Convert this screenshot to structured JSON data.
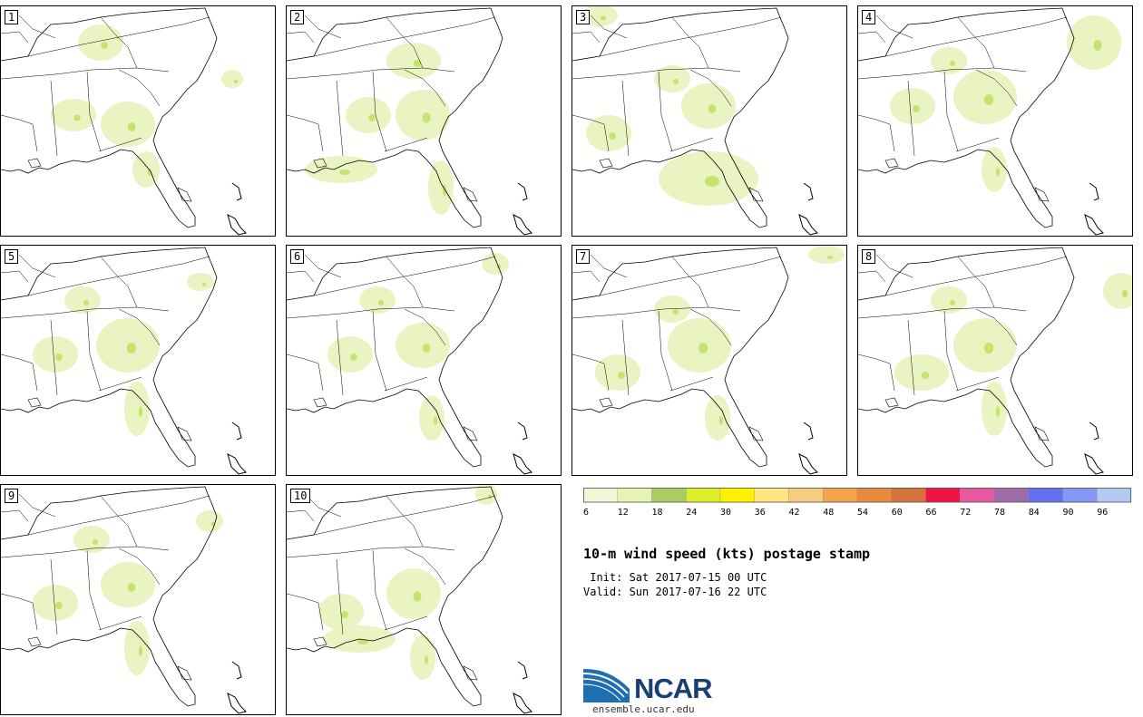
{
  "title": "10-m wind speed (kts) postage stamp",
  "init": " Init: Sat 2017-07-15 00 UTC",
  "valid": "Valid: Sun 2017-07-16 22 UTC",
  "logo": {
    "text": "NCAR",
    "url": "ensemble.ucar.edu"
  },
  "panels": [
    {
      "label": "1"
    },
    {
      "label": "2"
    },
    {
      "label": "3"
    },
    {
      "label": "4"
    },
    {
      "label": "5"
    },
    {
      "label": "6"
    },
    {
      "label": "7"
    },
    {
      "label": "8"
    },
    {
      "label": "9"
    },
    {
      "label": "10"
    }
  ],
  "colorbar": {
    "colors": [
      "#f2f5d6",
      "#e5f3b3",
      "#a9cd63",
      "#dfee2a",
      "#fff200",
      "#ffe680",
      "#f6cc80",
      "#f4a54c",
      "#e8893c",
      "#d6723c",
      "#ee1446",
      "#e8589e",
      "#9e6ca8",
      "#6470ee",
      "#8298f4",
      "#b4c8f4"
    ],
    "ticks": [
      "6",
      "12",
      "18",
      "24",
      "30",
      "36",
      "42",
      "48",
      "54",
      "60",
      "66",
      "72",
      "78",
      "84",
      "90",
      "96"
    ]
  },
  "colors": {
    "land_fill": "#e8f3bf",
    "high_fill": "#c7e36e",
    "peak_fill": "#dfee2a"
  }
}
